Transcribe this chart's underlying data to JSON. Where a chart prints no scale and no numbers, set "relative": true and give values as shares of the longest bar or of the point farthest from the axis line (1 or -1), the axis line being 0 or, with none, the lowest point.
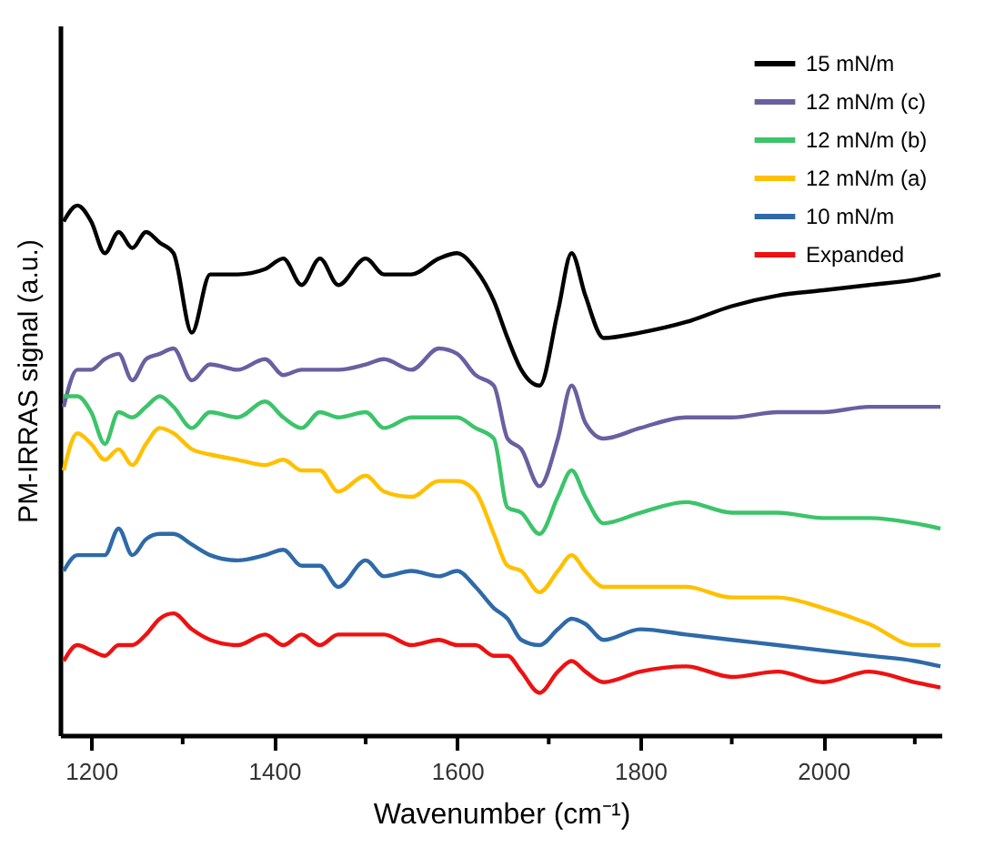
{
  "chart_data": {
    "type": "line",
    "xlabel": "Wavenumber (cm⁻¹)",
    "ylabel": "PM-IRRAS signal (a.u.)",
    "relative": true,
    "legend": "top right",
    "grid": false,
    "marker": "none",
    "line_style": "solid",
    "xlim": [
      1166,
      2130
    ],
    "xticks": [
      1200,
      {
        "value": 1300,
        "label": null
      },
      1400,
      {
        "value": 1500,
        "label": null
      },
      1600,
      {
        "value": 1700,
        "label": null
      },
      1800,
      {
        "value": 1900,
        "label": null
      },
      2000,
      {
        "value": 2100,
        "label": null
      }
    ],
    "x": [
      1170,
      1185,
      1200,
      1215,
      1230,
      1245,
      1260,
      1275,
      1290,
      1310,
      1330,
      1360,
      1390,
      1410,
      1430,
      1450,
      1470,
      1500,
      1520,
      1550,
      1580,
      1600,
      1620,
      1640,
      1655,
      1670,
      1690,
      1710,
      1725,
      1740,
      1760,
      1800,
      1850,
      1900,
      1950,
      2000,
      2050,
      2100,
      2128
    ],
    "series": [
      {
        "name": "15 mN/m",
        "color": "#000000",
        "values": [
          0.97,
          1.0,
          0.97,
          0.91,
          0.95,
          0.92,
          0.95,
          0.93,
          0.91,
          0.76,
          0.87,
          0.87,
          0.88,
          0.9,
          0.85,
          0.9,
          0.85,
          0.9,
          0.87,
          0.87,
          0.9,
          0.91,
          0.88,
          0.82,
          0.75,
          0.69,
          0.66,
          0.8,
          0.91,
          0.83,
          0.75,
          0.76,
          0.78,
          0.81,
          0.83,
          0.84,
          0.85,
          0.86,
          0.87
        ]
      },
      {
        "name": "12 mN/m (c)",
        "color": "#6a5fa0",
        "values": [
          0.62,
          0.69,
          0.69,
          0.71,
          0.72,
          0.67,
          0.71,
          0.72,
          0.73,
          0.67,
          0.7,
          0.69,
          0.71,
          0.68,
          0.69,
          0.69,
          0.69,
          0.7,
          0.71,
          0.69,
          0.73,
          0.72,
          0.68,
          0.66,
          0.56,
          0.54,
          0.47,
          0.56,
          0.66,
          0.59,
          0.56,
          0.58,
          0.6,
          0.6,
          0.61,
          0.61,
          0.62,
          0.62,
          0.62
        ]
      },
      {
        "name": "12 mN/m (b)",
        "color": "#3cc46a",
        "values": [
          0.64,
          0.64,
          0.61,
          0.55,
          0.61,
          0.6,
          0.62,
          0.64,
          0.62,
          0.58,
          0.61,
          0.6,
          0.63,
          0.6,
          0.58,
          0.61,
          0.6,
          0.61,
          0.58,
          0.6,
          0.6,
          0.6,
          0.58,
          0.56,
          0.43,
          0.42,
          0.38,
          0.45,
          0.5,
          0.45,
          0.4,
          0.42,
          0.44,
          0.42,
          0.42,
          0.41,
          0.41,
          0.4,
          0.39
        ]
      },
      {
        "name": "12 mN/m (a)",
        "color": "#ffc000",
        "values": [
          0.5,
          0.57,
          0.55,
          0.52,
          0.54,
          0.51,
          0.55,
          0.58,
          0.57,
          0.54,
          0.53,
          0.52,
          0.51,
          0.52,
          0.5,
          0.5,
          0.46,
          0.49,
          0.46,
          0.45,
          0.48,
          0.48,
          0.46,
          0.38,
          0.32,
          0.31,
          0.27,
          0.31,
          0.34,
          0.31,
          0.28,
          0.28,
          0.28,
          0.26,
          0.26,
          0.24,
          0.21,
          0.17,
          0.17
        ]
      },
      {
        "name": "10 mN/m",
        "color": "#2e6aa8",
        "values": [
          0.31,
          0.34,
          0.34,
          0.34,
          0.39,
          0.34,
          0.37,
          0.38,
          0.38,
          0.36,
          0.34,
          0.33,
          0.34,
          0.35,
          0.32,
          0.32,
          0.28,
          0.33,
          0.3,
          0.31,
          0.3,
          0.31,
          0.28,
          0.24,
          0.22,
          0.18,
          0.17,
          0.2,
          0.22,
          0.21,
          0.18,
          0.2,
          0.19,
          0.18,
          0.17,
          0.16,
          0.15,
          0.14,
          0.13
        ]
      },
      {
        "name": "Expanded",
        "color": "#ee1111",
        "values": [
          0.14,
          0.17,
          0.16,
          0.15,
          0.17,
          0.17,
          0.19,
          0.22,
          0.23,
          0.2,
          0.18,
          0.17,
          0.19,
          0.17,
          0.19,
          0.17,
          0.19,
          0.19,
          0.19,
          0.17,
          0.18,
          0.17,
          0.17,
          0.15,
          0.15,
          0.12,
          0.08,
          0.12,
          0.14,
          0.12,
          0.1,
          0.12,
          0.13,
          0.11,
          0.12,
          0.1,
          0.12,
          0.1,
          0.09
        ]
      }
    ]
  }
}
